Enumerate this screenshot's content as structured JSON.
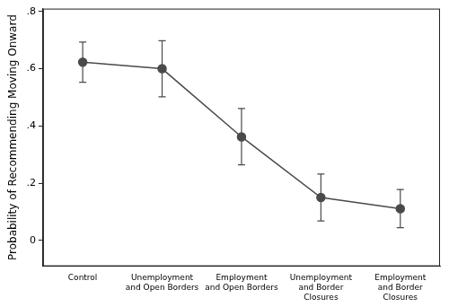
{
  "chart_data": {
    "type": "line",
    "y_label": "Probability of Recommending Moving Onward",
    "categories": [
      "Control",
      [
        "Unemployment",
        "and Open Borders"
      ],
      [
        "Employment",
        "and Open Borders"
      ],
      [
        "Unemployment",
        "and Border",
        "Closures"
      ],
      [
        "Employment",
        "and Border",
        "Closures"
      ]
    ],
    "values": [
      0.623,
      0.6,
      0.362,
      0.15,
      0.111
    ],
    "lower": [
      0.553,
      0.502,
      0.264,
      0.068,
      0.045
    ],
    "upper": [
      0.693,
      0.698,
      0.461,
      0.232,
      0.178
    ],
    "color": "#4a4a4a",
    "marker": "circle",
    "line_style": "solid",
    "ylim": [
      -0.09,
      0.81
    ],
    "yticks": [
      0,
      {
        "value": 0.2,
        "label": ".2"
      },
      {
        "value": 0.4,
        "label": ".4"
      },
      {
        "value": 0.6,
        "label": ".6"
      },
      {
        "value": 0.8,
        "label": ".8"
      }
    ],
    "grid": false
  }
}
